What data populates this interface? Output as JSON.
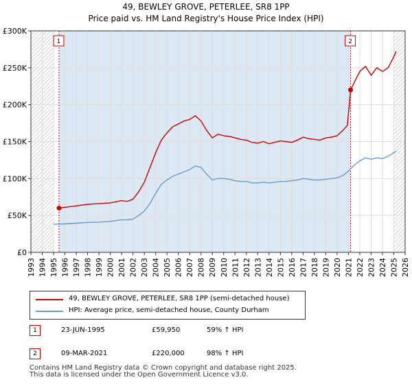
{
  "title_line1": "49, BEWLEY GROVE, PETERLEE, SR8 1PP",
  "title_line2": "Price paid vs. HM Land Registry's House Price Index (HPI)",
  "colors": {
    "property": "#cc0000",
    "hpi": "#6699cc",
    "shade": "#dde8f5",
    "hatch": "#aaaaaa",
    "grid": "#dddddd"
  },
  "chart_data": {
    "type": "line",
    "title": "Price paid vs. HM Land Registry's House Price Index (HPI)",
    "xlabel": "",
    "ylabel": "",
    "xlim": [
      1993,
      2026
    ],
    "ylim": [
      0,
      300000
    ],
    "x_ticks": [
      "1993",
      "1994",
      "1995",
      "1996",
      "1997",
      "1998",
      "1999",
      "2000",
      "2001",
      "2002",
      "2003",
      "2004",
      "2005",
      "2006",
      "2007",
      "2008",
      "2009",
      "2010",
      "2011",
      "2012",
      "2013",
      "2014",
      "2015",
      "2016",
      "2017",
      "2018",
      "2019",
      "2020",
      "2021",
      "2022",
      "2023",
      "2024",
      "2025",
      "2026"
    ],
    "y_ticks": [
      {
        "value": 0,
        "label": "£0"
      },
      {
        "value": 50000,
        "label": "£50K"
      },
      {
        "value": 100000,
        "label": "£100K"
      },
      {
        "value": 150000,
        "label": "£150K"
      },
      {
        "value": 200000,
        "label": "£200K"
      },
      {
        "value": 250000,
        "label": "£250K"
      },
      {
        "value": 300000,
        "label": "£300K"
      }
    ],
    "grid": true,
    "hatched_ranges": [
      [
        1993,
        1995.0
      ],
      [
        2025.0,
        2026
      ]
    ],
    "series": [
      {
        "name": "49, BEWLEY GROVE, PETERLEE, SR8 1PP (semi-detached house)",
        "color": "#cc0000",
        "x": [
          1995.48,
          1996,
          1997,
          1998,
          1999,
          2000,
          2001,
          2001.5,
          2002,
          2002.5,
          2003,
          2003.5,
          2004,
          2004.5,
          2005,
          2005.5,
          2006,
          2006.5,
          2007,
          2007.5,
          2008,
          2008.5,
          2009,
          2009.5,
          2010,
          2010.5,
          2011,
          2011.5,
          2012,
          2012.5,
          2013,
          2013.5,
          2014,
          2014.5,
          2015,
          2015.5,
          2016,
          2016.5,
          2017,
          2017.5,
          2018,
          2018.5,
          2019,
          2019.5,
          2020,
          2020.5,
          2020.9,
          2021.19,
          2021.5,
          2022,
          2022.5,
          2023,
          2023.5,
          2024,
          2024.5,
          2025,
          2025.2
        ],
        "values": [
          59950,
          61000,
          63000,
          65000,
          66000,
          67000,
          70000,
          69000,
          72000,
          82000,
          95000,
          115000,
          135000,
          152000,
          162000,
          170000,
          174000,
          178000,
          180000,
          185000,
          178000,
          165000,
          155000,
          160000,
          158000,
          157000,
          155000,
          153000,
          152000,
          149000,
          148000,
          150000,
          147000,
          149000,
          151000,
          150000,
          149000,
          152000,
          156000,
          154000,
          153000,
          152000,
          155000,
          156000,
          158000,
          165000,
          172000,
          220000,
          230000,
          245000,
          252000,
          240000,
          250000,
          245000,
          250000,
          265000,
          272000
        ]
      },
      {
        "name": "HPI: Average price, semi-detached house, County Durham",
        "color": "#6699cc",
        "x": [
          1995,
          1996,
          1997,
          1998,
          1999,
          2000,
          2001,
          2001.5,
          2002,
          2002.5,
          2003,
          2003.5,
          2004,
          2004.5,
          2005,
          2005.5,
          2006,
          2006.5,
          2007,
          2007.5,
          2008,
          2008.5,
          2009,
          2009.5,
          2010,
          2010.5,
          2011,
          2011.5,
          2012,
          2012.5,
          2013,
          2013.5,
          2014,
          2014.5,
          2015,
          2015.5,
          2016,
          2016.5,
          2017,
          2017.5,
          2018,
          2018.5,
          2019,
          2019.5,
          2020,
          2020.5,
          2021,
          2021.5,
          2022,
          2022.5,
          2023,
          2023.5,
          2024,
          2024.5,
          2025,
          2025.2
        ],
        "values": [
          38000,
          38500,
          39500,
          40500,
          41000,
          42000,
          44000,
          44000,
          45000,
          50000,
          56000,
          66000,
          80000,
          92000,
          98000,
          103000,
          106000,
          109000,
          112000,
          117000,
          115000,
          106000,
          98000,
          100000,
          100000,
          99000,
          97000,
          96000,
          96000,
          94000,
          94000,
          95000,
          94000,
          95000,
          96000,
          96000,
          97000,
          98000,
          100000,
          99000,
          98000,
          98000,
          99000,
          100000,
          101000,
          104000,
          110000,
          118000,
          124000,
          128000,
          126000,
          128000,
          127000,
          130000,
          135000,
          137000
        ]
      }
    ],
    "annotations": [
      {
        "label": "1",
        "x": 1995.48,
        "value": 59950
      },
      {
        "label": "2",
        "x": 2021.19,
        "value": 220000
      }
    ]
  },
  "legend": {
    "property_label": "49, BEWLEY GROVE, PETERLEE, SR8 1PP (semi-detached house)",
    "hpi_label": "HPI: Average price, semi-detached house, County Durham"
  },
  "sales": [
    {
      "num": "1",
      "date": "23-JUN-1995",
      "price": "£59,950",
      "hpi": "59% ↑ HPI"
    },
    {
      "num": "2",
      "date": "09-MAR-2021",
      "price": "£220,000",
      "hpi": "98% ↑ HPI"
    }
  ],
  "footer": {
    "line1": "Contains HM Land Registry data © Crown copyright and database right 2025.",
    "line2": "This data is licensed under the Open Government Licence v3.0."
  }
}
